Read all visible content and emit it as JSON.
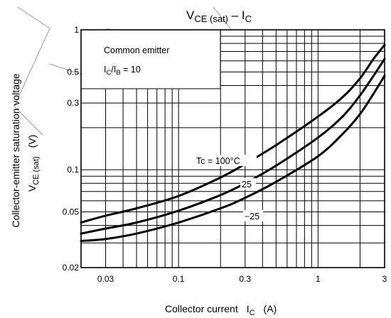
{
  "title": {
    "main": "V",
    "sub": "CE (sat)",
    "dash": " – I",
    "sub2": "C"
  },
  "ylabel": {
    "line1": "Collector-emitter saturation voltage",
    "sym": "V",
    "sub": "CE (sat)",
    "unit": "(V)"
  },
  "xlabel": {
    "text": "Collector current",
    "sym": "I",
    "sub": "C",
    "unit": "(A)"
  },
  "annotation": {
    "line1": "Common emitter",
    "ratio_I1": "I",
    "ratio_sub1": "C",
    "ratio_mid": "/I",
    "ratio_sub2": "B",
    "ratio_val": " = 10"
  },
  "curve_labels": [
    "Tc = 100°C",
    "25",
    "−25"
  ],
  "chart_data": {
    "type": "line",
    "title": "VCE (sat) – IC",
    "xlabel": "Collector current IC (A)",
    "ylabel": "Collector-emitter saturation voltage VCE (sat) (V)",
    "x_scale": "log",
    "y_scale": "log",
    "xlim": [
      0.02,
      3
    ],
    "ylim": [
      0.02,
      1
    ],
    "x_ticks": [
      "0.03",
      "0.1",
      "0.3",
      "1",
      "3"
    ],
    "y_ticks": [
      "1",
      "0.5",
      "0.3",
      "0.1",
      "0.05",
      "0.02"
    ],
    "grid": true,
    "series": [
      {
        "name": "Tc = 100°C",
        "x": [
          0.02,
          0.03,
          0.05,
          0.1,
          0.2,
          0.3,
          0.5,
          1,
          1.5,
          2,
          2.5,
          3
        ],
        "y": [
          0.042,
          0.047,
          0.053,
          0.065,
          0.088,
          0.11,
          0.15,
          0.24,
          0.33,
          0.45,
          0.62,
          0.78
        ]
      },
      {
        "name": "25",
        "x": [
          0.02,
          0.03,
          0.05,
          0.1,
          0.2,
          0.3,
          0.5,
          1,
          1.5,
          2,
          2.5,
          3
        ],
        "y": [
          0.035,
          0.038,
          0.042,
          0.051,
          0.066,
          0.08,
          0.107,
          0.17,
          0.24,
          0.34,
          0.47,
          0.62
        ]
      },
      {
        "name": "−25",
        "x": [
          0.02,
          0.03,
          0.05,
          0.1,
          0.2,
          0.3,
          0.5,
          1,
          1.5,
          2,
          2.5,
          3
        ],
        "y": [
          0.031,
          0.032,
          0.035,
          0.042,
          0.053,
          0.063,
          0.082,
          0.125,
          0.18,
          0.25,
          0.35,
          0.47
        ]
      }
    ],
    "annotations": [
      "Common emitter",
      "IC/IB = 10"
    ]
  }
}
